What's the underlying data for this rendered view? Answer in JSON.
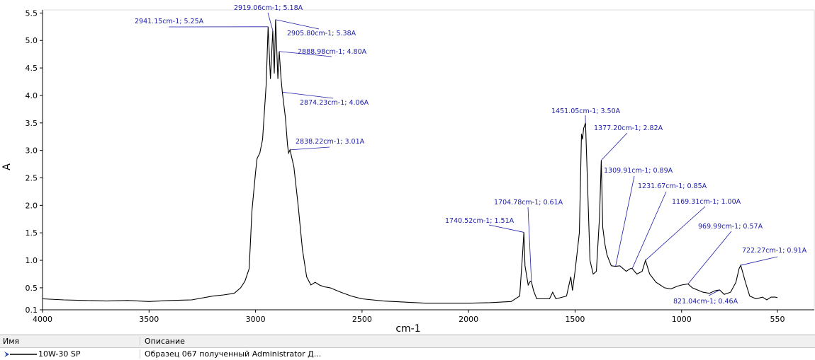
{
  "chart_data": {
    "type": "line",
    "xlabel": "cm-1",
    "ylabel": "A",
    "xlim": [
      4000,
      550
    ],
    "xticks": [
      4000,
      3500,
      3000,
      2500,
      2000,
      1500,
      1000,
      550
    ],
    "ylim": [
      0.1,
      5.55
    ],
    "yticks": [
      0.1,
      0.5,
      {
        "value": 1,
        "label": "1.0"
      },
      1.5,
      {
        "value": 2,
        "label": "2.0"
      },
      2.5,
      {
        "value": 3,
        "label": "3.0"
      },
      3.5,
      {
        "value": 4,
        "label": "4.0"
      },
      4.5,
      {
        "value": 5,
        "label": "5.0"
      },
      5.5
    ],
    "x": [
      4000,
      3900,
      3800,
      3700,
      3600,
      3500,
      3400,
      3300,
      3200,
      3150,
      3100,
      3070,
      3050,
      3030,
      3017,
      3000,
      2993,
      2980,
      2967,
      2950,
      2941.15,
      2930,
      2919.06,
      2912,
      2905.8,
      2895,
      2888.98,
      2880,
      2874.23,
      2860,
      2850,
      2845,
      2838.22,
      2820,
      2800,
      2780,
      2760,
      2740,
      2720,
      2700,
      2680,
      2650,
      2600,
      2550,
      2500,
      2400,
      2200,
      2000,
      1900,
      1800,
      1760,
      1745,
      1740.52,
      1735,
      1720,
      1710,
      1704.78,
      1695,
      1680,
      1620,
      1605,
      1590,
      1540,
      1520,
      1512,
      1500,
      1480,
      1470,
      1465,
      1460,
      1451.05,
      1445,
      1430,
      1415,
      1400,
      1385,
      1377.2,
      1370,
      1360,
      1350,
      1330,
      1309.91,
      1290,
      1260,
      1240,
      1231.67,
      1210,
      1185,
      1169.31,
      1150,
      1120,
      1100,
      1080,
      1050,
      1020,
      1000,
      969.99,
      950,
      900,
      870,
      840,
      821.04,
      800,
      770,
      745,
      730,
      722.27,
      700,
      680,
      650,
      620,
      600,
      580,
      560,
      550
    ],
    "series": [
      {
        "color": "#000000",
        "values": [
          0.3,
          0.28,
          0.27,
          0.26,
          0.27,
          0.25,
          0.27,
          0.28,
          0.35,
          0.37,
          0.4,
          0.5,
          0.62,
          0.85,
          1.9,
          2.6,
          2.85,
          2.95,
          3.2,
          4.2,
          5.25,
          4.3,
          5.18,
          4.4,
          5.38,
          4.3,
          4.8,
          4.3,
          4.06,
          3.6,
          3.1,
          2.95,
          3.01,
          2.7,
          2.0,
          1.2,
          0.7,
          0.55,
          0.6,
          0.55,
          0.52,
          0.5,
          0.42,
          0.35,
          0.3,
          0.26,
          0.22,
          0.22,
          0.23,
          0.25,
          0.35,
          1.2,
          1.51,
          0.9,
          0.55,
          0.62,
          0.61,
          0.45,
          0.3,
          0.3,
          0.42,
          0.3,
          0.35,
          0.7,
          0.45,
          0.8,
          1.5,
          3.3,
          3.2,
          3.4,
          3.5,
          2.8,
          1.0,
          0.75,
          0.8,
          1.8,
          2.82,
          1.6,
          1.3,
          1.1,
          0.9,
          0.89,
          0.9,
          0.8,
          0.85,
          0.85,
          0.75,
          0.8,
          1.0,
          0.75,
          0.6,
          0.55,
          0.5,
          0.48,
          0.53,
          0.55,
          0.57,
          0.5,
          0.42,
          0.4,
          0.45,
          0.46,
          0.38,
          0.42,
          0.6,
          0.85,
          0.91,
          0.6,
          0.35,
          0.3,
          0.33,
          0.28,
          0.33,
          0.33,
          0.32
        ]
      }
    ],
    "annotations": [
      {
        "label": "2941.15cm-1; 5.25A",
        "x": 2941.15,
        "y": 5.25
      },
      {
        "label": "2919.06cm-1; 5.18A",
        "x": 2919.06,
        "y": 5.18
      },
      {
        "label": "2905.80cm-1; 5.38A",
        "x": 2905.8,
        "y": 5.38
      },
      {
        "label": "2888.98cm-1; 4.80A",
        "x": 2888.98,
        "y": 4.8
      },
      {
        "label": "2874.23cm-1; 4.06A",
        "x": 2874.23,
        "y": 4.06
      },
      {
        "label": "2838.22cm-1; 3.01A",
        "x": 2838.22,
        "y": 3.01
      },
      {
        "label": "1451.05cm-1; 3.50A",
        "x": 1451.05,
        "y": 3.5
      },
      {
        "label": "1377.20cm-1; 2.82A",
        "x": 1377.2,
        "y": 2.82
      },
      {
        "label": "1309.91cm-1; 0.89A",
        "x": 1309.91,
        "y": 0.89
      },
      {
        "label": "1231.67cm-1; 0.85A",
        "x": 1231.67,
        "y": 0.85
      },
      {
        "label": "1169.31cm-1; 1.00A",
        "x": 1169.31,
        "y": 1.0
      },
      {
        "label": "969.99cm-1; 0.57A",
        "x": 969.99,
        "y": 0.57
      },
      {
        "label": "722.27cm-1; 0.91A",
        "x": 722.27,
        "y": 0.91
      },
      {
        "label": "821.04cm-1; 0.46A",
        "x": 821.04,
        "y": 0.46
      },
      {
        "label": "1740.52cm-1; 1.51A",
        "x": 1740.52,
        "y": 1.51
      },
      {
        "label": "1704.78cm-1; 0.61A",
        "x": 1704.78,
        "y": 0.61
      }
    ]
  },
  "table": {
    "headers": [
      "Имя",
      "Описание"
    ],
    "rows": [
      [
        "10W-30 SP",
        "Образец 067 полученный Administrator Д..."
      ]
    ]
  }
}
